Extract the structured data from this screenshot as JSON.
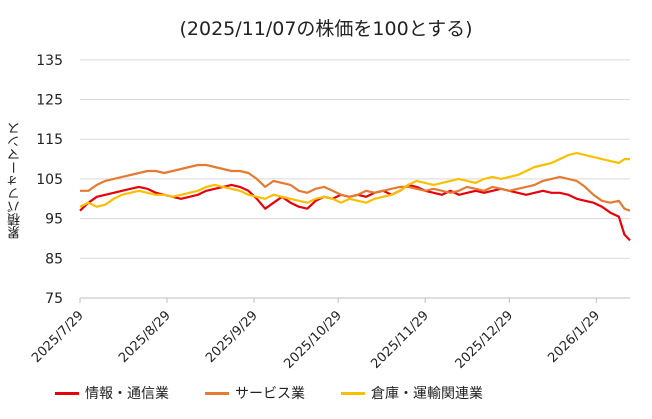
{
  "chart_data": {
    "type": "line",
    "title": "(2025/11/07の株価を100とする)",
    "xlabel": "",
    "ylabel": "累積パフォーマンス",
    "ylim": [
      75,
      140
    ],
    "yticks": [
      75,
      85,
      95,
      105,
      115,
      125,
      135
    ],
    "x_tick_labels": [
      "2025/7/29",
      "2025/8/29",
      "2025/9/29",
      "2025/10/29",
      "2025/11/29",
      "2025/12/29",
      "2026/1/29"
    ],
    "x_range_days": [
      0,
      196
    ],
    "x_tick_days": [
      0,
      31,
      62,
      92,
      123,
      153,
      184
    ],
    "grid": "horizontal",
    "legend_position": "bottom",
    "series": [
      {
        "name": "情報・通信業",
        "color": "#e8000b",
        "x": [
          0,
          3,
          6,
          9,
          12,
          15,
          18,
          21,
          24,
          27,
          30,
          33,
          36,
          39,
          42,
          45,
          48,
          51,
          54,
          57,
          60,
          63,
          66,
          69,
          72,
          75,
          78,
          81,
          84,
          87,
          90,
          93,
          96,
          99,
          102,
          105,
          108,
          111,
          114,
          117,
          120,
          123,
          126,
          129,
          132,
          135,
          138,
          141,
          144,
          147,
          150,
          153,
          156,
          159,
          162,
          165,
          168,
          171,
          174,
          177,
          180,
          183,
          186,
          189,
          192,
          194,
          196
        ],
        "values": [
          97,
          99,
          100.5,
          101,
          101.5,
          102,
          102.5,
          103,
          102.5,
          101.5,
          101,
          100.5,
          100,
          100.5,
          101,
          102,
          102.5,
          103,
          103.5,
          103,
          102,
          100,
          97.5,
          99,
          100.5,
          99,
          98,
          97.5,
          99.5,
          100.5,
          100,
          101,
          100.5,
          101,
          100.5,
          101.5,
          102,
          101,
          102,
          103.5,
          103,
          102,
          101.5,
          101,
          102,
          101,
          101.5,
          102,
          101.5,
          102,
          102.5,
          102,
          101.5,
          101,
          101.5,
          102,
          101.5,
          101.5,
          101,
          100,
          99.5,
          99,
          98,
          96.5,
          95.5,
          91,
          89.5
        ]
      },
      {
        "name": "サービス業",
        "color": "#e57b32",
        "x": [
          0,
          3,
          6,
          9,
          12,
          15,
          18,
          21,
          24,
          27,
          30,
          33,
          36,
          39,
          42,
          45,
          48,
          51,
          54,
          57,
          60,
          63,
          66,
          69,
          72,
          75,
          78,
          81,
          84,
          87,
          90,
          93,
          96,
          99,
          102,
          105,
          108,
          111,
          114,
          117,
          120,
          123,
          126,
          129,
          132,
          135,
          138,
          141,
          144,
          147,
          150,
          153,
          156,
          159,
          162,
          165,
          168,
          171,
          174,
          177,
          180,
          183,
          186,
          189,
          192,
          194,
          196
        ],
        "values": [
          102,
          102,
          103.5,
          104.5,
          105,
          105.5,
          106,
          106.5,
          107,
          107,
          106.5,
          107,
          107.5,
          108,
          108.5,
          108.5,
          108,
          107.5,
          107,
          107,
          106.5,
          105,
          103,
          104.5,
          104,
          103.5,
          102,
          101.5,
          102.5,
          103,
          102,
          101,
          100.5,
          101,
          102,
          101.5,
          102,
          102.5,
          103,
          103,
          102.5,
          102,
          102.5,
          102,
          101.5,
          102,
          103,
          102.5,
          102,
          103,
          102.5,
          102,
          102.5,
          103,
          103.5,
          104.5,
          105,
          105.5,
          105,
          104.5,
          103,
          101,
          99.5,
          99,
          99.5,
          97.5,
          97
        ]
      },
      {
        "name": "倉庫・運輸関連業",
        "color": "#f8c000",
        "x": [
          0,
          3,
          6,
          9,
          12,
          15,
          18,
          21,
          24,
          27,
          30,
          33,
          36,
          39,
          42,
          45,
          48,
          51,
          54,
          57,
          60,
          63,
          66,
          69,
          72,
          75,
          78,
          81,
          84,
          87,
          90,
          93,
          96,
          99,
          102,
          105,
          108,
          111,
          114,
          117,
          120,
          123,
          126,
          129,
          132,
          135,
          138,
          141,
          144,
          147,
          150,
          153,
          156,
          159,
          162,
          165,
          168,
          171,
          174,
          177,
          180,
          183,
          186,
          189,
          192,
          194,
          196
        ],
        "values": [
          98,
          99,
          98,
          98.5,
          100,
          101,
          101.5,
          102,
          101.5,
          101,
          101,
          100.5,
          101,
          101.5,
          102,
          103,
          103.5,
          103,
          102.5,
          102,
          101,
          100.5,
          100,
          101,
          100.5,
          100,
          99.5,
          99,
          100,
          100.5,
          100,
          99,
          100,
          99.5,
          99,
          100,
          100.5,
          101,
          102,
          103.5,
          104.5,
          104,
          103.5,
          104,
          104.5,
          105,
          104.5,
          104,
          105,
          105.5,
          105,
          105.5,
          106,
          107,
          108,
          108.5,
          109,
          110,
          111,
          111.5,
          111,
          110.5,
          110,
          109.5,
          109,
          110,
          110
        ]
      }
    ]
  }
}
